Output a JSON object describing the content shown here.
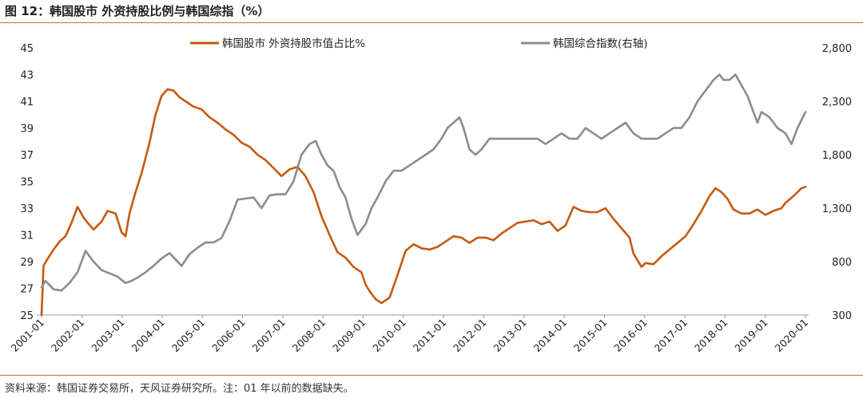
{
  "figure": {
    "title": "图 12：韩国股市 外资持股比例与韩国综指（%）",
    "source": "资料来源：韩国证券交易所，天风证券研究所。注：01 年以前的数据缺失。"
  },
  "chart_data": {
    "type": "line",
    "title": "",
    "xlabel": "",
    "ylabel": "",
    "x_ticks": [
      "2001-01",
      "2002-01",
      "2003-01",
      "2004-01",
      "2005-01",
      "2006-01",
      "2007-01",
      "2008-01",
      "2009-01",
      "2010-01",
      "2011-01",
      "2012-01",
      "2013-01",
      "2014-01",
      "2015-01",
      "2016-01",
      "2017-01",
      "2018-01",
      "2019-01",
      "2020-01"
    ],
    "x_range": [
      2001.0,
      2020.1
    ],
    "left_axis": {
      "ticks": [
        "45",
        "43",
        "41",
        "39",
        "37",
        "35",
        "33",
        "31",
        "29",
        "27",
        "25"
      ],
      "ylim": [
        25,
        45
      ]
    },
    "right_axis": {
      "ticks": [
        "2,800",
        "2,300",
        "1,800",
        "1,300",
        "800",
        "300"
      ],
      "ylim": [
        300,
        2800
      ]
    },
    "legend_placement": "top",
    "grid": false,
    "colors": {
      "foreign": "#c55a11",
      "kospi": "#8c8c8c"
    },
    "series": [
      {
        "name": "韩国股市 外资持股市值占比%",
        "axis": "left",
        "x": [
          2001.0,
          2001.05,
          2001.15,
          2001.3,
          2001.45,
          2001.6,
          2001.75,
          2001.9,
          2002.05,
          2002.15,
          2002.3,
          2002.5,
          2002.65,
          2002.85,
          2003.0,
          2003.1,
          2003.2,
          2003.35,
          2003.5,
          2003.7,
          2003.85,
          2004.0,
          2004.15,
          2004.3,
          2004.45,
          2004.6,
          2004.8,
          2005.0,
          2005.2,
          2005.4,
          2005.6,
          2005.8,
          2006.0,
          2006.2,
          2006.4,
          2006.6,
          2006.8,
          2007.0,
          2007.2,
          2007.4,
          2007.6,
          2007.8,
          2008.0,
          2008.2,
          2008.4,
          2008.6,
          2008.8,
          2009.0,
          2009.1,
          2009.2,
          2009.35,
          2009.5,
          2009.7,
          2009.9,
          2010.1,
          2010.3,
          2010.5,
          2010.7,
          2010.9,
          2011.1,
          2011.3,
          2011.5,
          2011.7,
          2011.9,
          2012.1,
          2012.3,
          2012.5,
          2012.7,
          2012.9,
          2013.1,
          2013.3,
          2013.5,
          2013.7,
          2013.9,
          2014.1,
          2014.3,
          2014.5,
          2014.7,
          2014.9,
          2015.1,
          2015.3,
          2015.5,
          2015.7,
          2015.8,
          2016.0,
          2016.1,
          2016.3,
          2016.5,
          2016.7,
          2016.9,
          2017.1,
          2017.3,
          2017.5,
          2017.7,
          2017.85,
          2018.0,
          2018.15,
          2018.3,
          2018.5,
          2018.7,
          2018.9,
          2019.1,
          2019.3,
          2019.5,
          2019.6,
          2019.8,
          2020.0,
          2020.1
        ],
        "values": [
          25,
          28.7,
          29.2,
          29.9,
          30.5,
          30.9,
          31.9,
          33.1,
          32.3,
          31.9,
          31.4,
          32.0,
          32.8,
          32.6,
          31.2,
          30.9,
          32.6,
          34.2,
          35.6,
          37.9,
          40.0,
          41.4,
          41.9,
          41.8,
          41.3,
          41.0,
          40.6,
          40.4,
          39.8,
          39.4,
          38.9,
          38.5,
          37.9,
          37.6,
          37.0,
          36.6,
          36.0,
          35.4,
          35.9,
          36.1,
          35.4,
          34.2,
          32.4,
          31.0,
          29.7,
          29.3,
          28.6,
          28.2,
          27.3,
          26.8,
          26.2,
          25.9,
          26.3,
          28.0,
          29.8,
          30.3,
          30.0,
          29.9,
          30.1,
          30.5,
          30.9,
          30.8,
          30.4,
          30.8,
          30.8,
          30.6,
          31.1,
          31.5,
          31.9,
          32.0,
          32.1,
          31.8,
          32.0,
          31.3,
          31.7,
          33.1,
          32.8,
          32.7,
          32.7,
          33.0,
          32.2,
          31.5,
          30.8,
          29.6,
          28.6,
          28.9,
          28.8,
          29.4,
          29.9,
          30.4,
          30.9,
          31.8,
          32.8,
          33.9,
          34.5,
          34.2,
          33.7,
          32.9,
          32.6,
          32.6,
          32.9,
          32.5,
          32.8,
          33.0,
          33.4,
          33.9,
          34.5,
          34.6
        ]
      },
      {
        "name": "韩国综合指数(右轴)",
        "axis": "right",
        "x": [
          2001.0,
          2001.1,
          2001.3,
          2001.5,
          2001.7,
          2001.9,
          2002.1,
          2002.3,
          2002.5,
          2002.7,
          2002.9,
          2003.1,
          2003.25,
          2003.4,
          2003.6,
          2003.8,
          2004.0,
          2004.2,
          2004.35,
          2004.5,
          2004.7,
          2004.9,
          2005.1,
          2005.3,
          2005.5,
          2005.7,
          2005.9,
          2006.1,
          2006.3,
          2006.5,
          2006.7,
          2006.9,
          2007.1,
          2007.3,
          2007.5,
          2007.6,
          2007.7,
          2007.85,
          2008.0,
          2008.15,
          2008.3,
          2008.45,
          2008.6,
          2008.75,
          2008.9,
          2009.0,
          2009.1,
          2009.25,
          2009.4,
          2009.6,
          2009.8,
          2010.0,
          2010.2,
          2010.4,
          2010.6,
          2010.8,
          2011.0,
          2011.15,
          2011.3,
          2011.45,
          2011.55,
          2011.7,
          2011.85,
          2012.0,
          2012.2,
          2012.4,
          2012.6,
          2012.8,
          2013.0,
          2013.2,
          2013.4,
          2013.6,
          2013.8,
          2014.0,
          2014.2,
          2014.4,
          2014.6,
          2014.8,
          2015.0,
          2015.2,
          2015.4,
          2015.6,
          2015.8,
          2016.0,
          2016.2,
          2016.4,
          2016.6,
          2016.8,
          2017.0,
          2017.2,
          2017.4,
          2017.6,
          2017.8,
          2017.95,
          2018.05,
          2018.2,
          2018.35,
          2018.5,
          2018.65,
          2018.8,
          2018.9,
          2019.0,
          2019.2,
          2019.4,
          2019.6,
          2019.75,
          2019.9,
          2020.1
        ],
        "values": [
          560,
          620,
          540,
          530,
          600,
          700,
          900,
          800,
          720,
          690,
          660,
          600,
          620,
          650,
          700,
          760,
          830,
          880,
          820,
          760,
          870,
          930,
          980,
          980,
          1020,
          1180,
          1380,
          1390,
          1400,
          1300,
          1420,
          1430,
          1430,
          1550,
          1800,
          1850,
          1900,
          1930,
          1800,
          1700,
          1650,
          1500,
          1400,
          1200,
          1050,
          1100,
          1150,
          1300,
          1400,
          1550,
          1650,
          1650,
          1700,
          1750,
          1800,
          1850,
          1950,
          2050,
          2100,
          2150,
          2050,
          1850,
          1800,
          1850,
          1950,
          1950,
          1950,
          1950,
          1950,
          1950,
          1950,
          1900,
          1950,
          2000,
          1950,
          1950,
          2050,
          2000,
          1950,
          2000,
          2050,
          2100,
          2000,
          1950,
          1950,
          1950,
          2000,
          2050,
          2050,
          2150,
          2300,
          2400,
          2500,
          2550,
          2500,
          2500,
          2550,
          2450,
          2350,
          2200,
          2100,
          2200,
          2150,
          2050,
          2000,
          1900,
          2050,
          2200
        ]
      }
    ]
  }
}
